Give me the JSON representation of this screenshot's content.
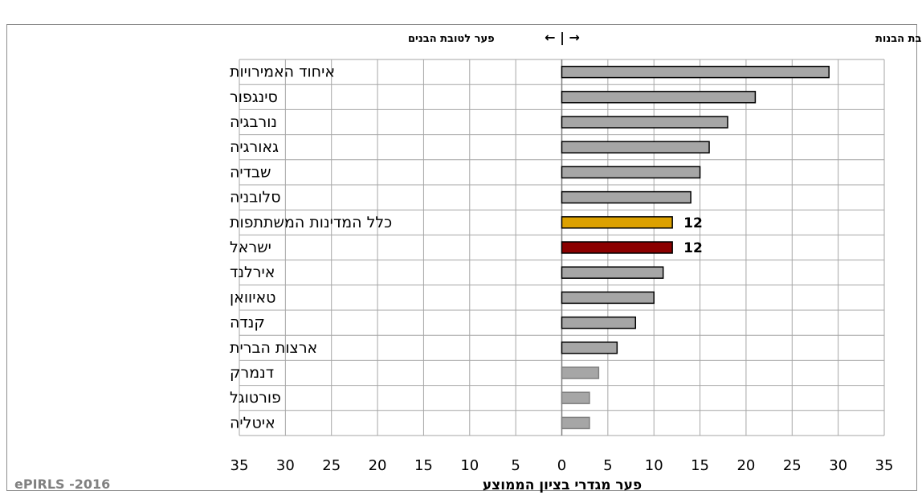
{
  "chart_data": {
    "type": "bar",
    "orientation": "horizontal",
    "categories": [
      "איחוד האמירויות",
      "סינגפור",
      "נורבגיה",
      "גאורגיה",
      "שבדיה",
      "סלובניה",
      "כלל המדינות המשתתפות",
      "ישראל",
      "אירלנד",
      "טאיוואן",
      "קנדה",
      "ארצות הברית",
      "דנמרק",
      "פורטוגל",
      "איטליה"
    ],
    "values": [
      29,
      21,
      18,
      16,
      15,
      14,
      12,
      12,
      11,
      10,
      8,
      6,
      4,
      3,
      3
    ],
    "data_labels": [
      "",
      "",
      "",
      "",
      "",
      "",
      "12",
      "12",
      "",
      "",
      "",
      "",
      "",
      "",
      ""
    ],
    "bar_colors": [
      "#a6a6a6",
      "#a6a6a6",
      "#a6a6a6",
      "#a6a6a6",
      "#a6a6a6",
      "#a6a6a6",
      "#dca100",
      "#8b0000",
      "#a6a6a6",
      "#a6a6a6",
      "#a6a6a6",
      "#a6a6a6",
      "#a6a6a6",
      "#a6a6a6",
      "#a6a6a6"
    ],
    "bar_outline": [
      "dark",
      "dark",
      "dark",
      "dark",
      "dark",
      "dark",
      "dark",
      "dark",
      "dark",
      "dark",
      "dark",
      "dark",
      "light",
      "light",
      "light"
    ],
    "xlim": [
      -35,
      35
    ],
    "x_ticks": [
      -35,
      -30,
      -25,
      -20,
      -15,
      -10,
      -5,
      0,
      5,
      10,
      15,
      20,
      25,
      30,
      35
    ],
    "x_tick_labels": [
      "35",
      "30",
      "25",
      "20",
      "15",
      "10",
      "5",
      "0",
      "5",
      "10",
      "15",
      "20",
      "25",
      "30",
      "35"
    ],
    "xlabel": "פער מגדרי בציון הממוצע",
    "header_right": "פער לטובת הבנות",
    "header_left": "פער לטובת הבנים",
    "header_arrows": "← | →",
    "source": "ePIRLS -2016",
    "grid": true,
    "colors": {
      "default_bar": "#a6a6a6",
      "all_countries": "#dca100",
      "israel": "#8b0000",
      "grid": "#a6a6a6"
    }
  }
}
